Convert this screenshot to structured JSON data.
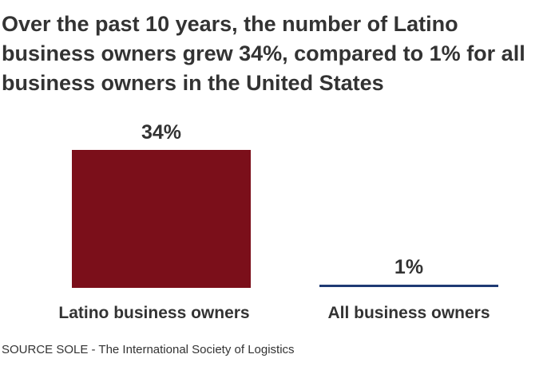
{
  "chart_data": {
    "type": "bar",
    "title": "Over the past 10 years, the number of Latino business owners grew 34%, compared to 1% for all business owners in the United States",
    "categories": [
      "Latino business owners",
      "All business owners"
    ],
    "values": [
      34,
      1
    ],
    "value_labels": [
      "34%",
      "1%"
    ],
    "colors": [
      "#7b0f1a",
      "#1f3a73"
    ],
    "xlabel": "",
    "ylabel": "",
    "ylim": [
      0,
      34
    ],
    "grid": false,
    "legend": "none"
  },
  "source": "SOURCE SOLE - The International Society of Logistics"
}
